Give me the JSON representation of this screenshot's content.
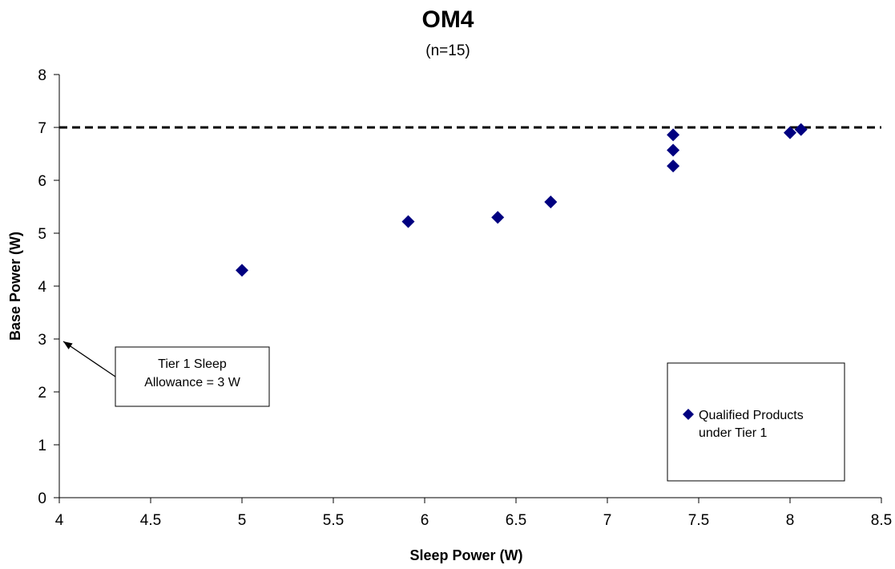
{
  "chart_data": {
    "type": "scatter",
    "title": "OM4",
    "subtitle": "(n=15)",
    "xlabel": "Sleep Power (W)",
    "ylabel": "Base Power (W)",
    "xlim": [
      4,
      8.5
    ],
    "ylim": [
      0,
      8
    ],
    "x_ticks": [
      "4",
      "4.5",
      "5",
      "5.5",
      "6",
      "6.5",
      "7",
      "7.5",
      "8",
      "8.5"
    ],
    "y_ticks": [
      "0",
      "1",
      "2",
      "3",
      "4",
      "5",
      "6",
      "7",
      "8"
    ],
    "grid": false,
    "legend_position": "bottom-right",
    "series": [
      {
        "name": "Qualified Products under Tier 1",
        "legend_lines": [
          "Qualified Products",
          "under Tier 1"
        ],
        "marker": "diamond",
        "color": "#000080",
        "points": [
          {
            "x": 5.0,
            "y": 4.3
          },
          {
            "x": 5.91,
            "y": 5.22
          },
          {
            "x": 6.4,
            "y": 5.3
          },
          {
            "x": 6.69,
            "y": 5.59
          },
          {
            "x": 7.36,
            "y": 6.27
          },
          {
            "x": 7.36,
            "y": 6.57
          },
          {
            "x": 7.36,
            "y": 6.86
          },
          {
            "x": 8.0,
            "y": 6.9
          },
          {
            "x": 8.06,
            "y": 6.96
          }
        ]
      }
    ],
    "reference_line": {
      "y": 7,
      "style": "dashed",
      "color": "#000000"
    },
    "annotation": {
      "lines": [
        "Tier 1 Sleep",
        "Allowance = 3 W"
      ],
      "arrow_target": {
        "x": 4,
        "y": 3
      }
    }
  }
}
